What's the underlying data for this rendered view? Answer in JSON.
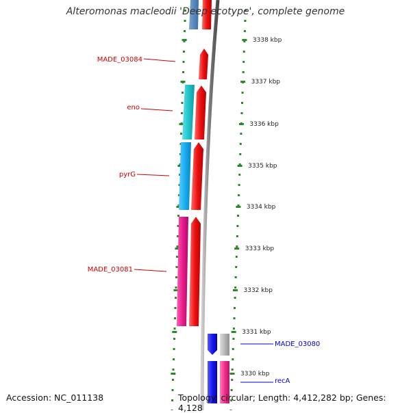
{
  "title": "Alteromonas macleodii 'Deep ecotype', complete genome",
  "accession": "Accession: NC_011138",
  "topology": "Topology: circular; Length: 4,412,282 bp; Genes: 4,128",
  "scale_labels": [
    "3338 kbp",
    "3337 kbp",
    "3336 kbp",
    "3335 kbp",
    "3334 kbp",
    "3333 kbp",
    "3332 kbp",
    "3331 kbp",
    "3330 kbp"
  ],
  "gene_labels": [
    {
      "text": "MADE_03084",
      "color": "#cc0000"
    },
    {
      "text": "eno",
      "color": "#cc0000"
    },
    {
      "text": "pyrG",
      "color": "#cc0000"
    },
    {
      "text": "MADE_03081",
      "color": "#cc0000"
    },
    {
      "text": "MADE_03080",
      "color": "#0000cc"
    },
    {
      "text": "recA",
      "color": "#0000cc"
    }
  ],
  "colors": {
    "red": "#ee1111",
    "cyan": "#22c4cc",
    "sky": "#19aef0",
    "magenta": "#e81c8c",
    "blue": "#1a1aee",
    "grey": "#b8b8b8",
    "pink": "#f0308c",
    "ruler": "#2a8a2a"
  }
}
